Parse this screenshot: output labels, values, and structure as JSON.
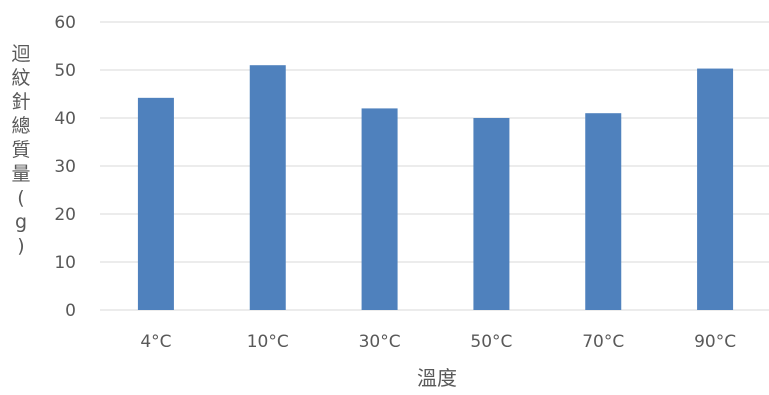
{
  "chart_data": {
    "type": "bar",
    "categories": [
      "4°C",
      "10°C",
      "30°C",
      "50°C",
      "70°C",
      "90°C"
    ],
    "values": [
      44.2,
      51.0,
      42.0,
      40.0,
      41.0,
      50.3
    ],
    "xlabel": "溫度",
    "ylabel": "迴紋針總質量(g)",
    "ylim": [
      0,
      60
    ],
    "yticks": [
      0,
      10,
      20,
      30,
      40,
      50,
      60
    ],
    "grid": true,
    "legend": "none",
    "bar_color": "#4f81bd",
    "grid_color": "#d9d9d9",
    "text_color": "#595959"
  }
}
